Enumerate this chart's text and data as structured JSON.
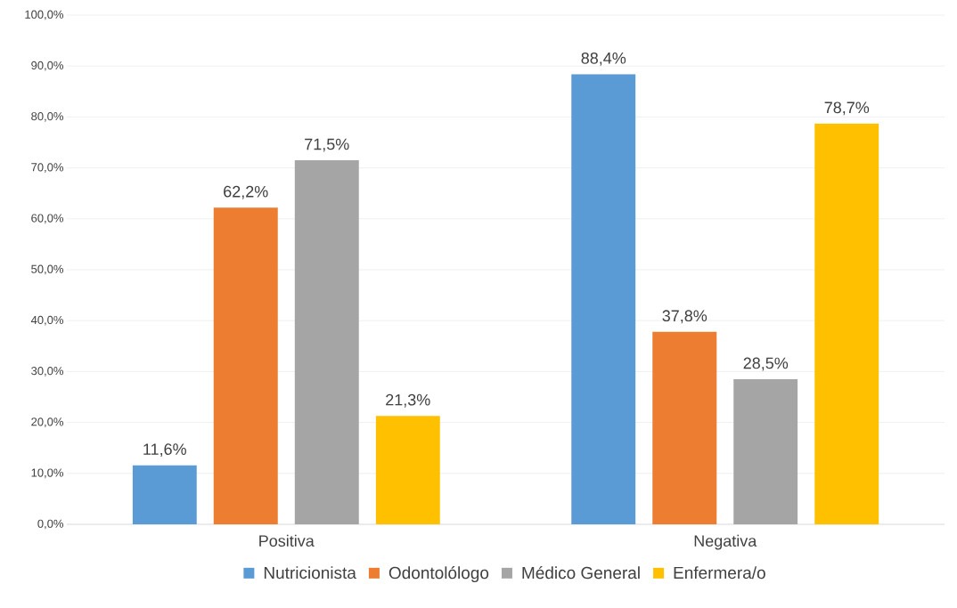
{
  "chart_data": {
    "type": "bar",
    "categories": [
      "Positiva",
      "Negativa"
    ],
    "series": [
      {
        "name": "Nutricionista",
        "color": "#5b9bd5",
        "values": [
          11.6,
          88.4
        ],
        "value_labels": [
          "11,6%",
          "88,4%"
        ]
      },
      {
        "name": "Odontolólogo",
        "color": "#ed7d31",
        "values": [
          62.2,
          37.8
        ],
        "value_labels": [
          "62,2%",
          "37,8%"
        ]
      },
      {
        "name": "Médico General",
        "color": "#a5a5a5",
        "values": [
          71.5,
          28.5
        ],
        "value_labels": [
          "71,5%",
          "28,5%"
        ]
      },
      {
        "name": "Enfermera/o",
        "color": "#ffc000",
        "values": [
          21.3,
          78.7
        ],
        "value_labels": [
          "21,3%",
          "78,7%"
        ]
      }
    ],
    "ylim": [
      0,
      100
    ],
    "yticks": [
      {
        "value": 0,
        "label": "0,0%"
      },
      {
        "value": 10,
        "label": "10,0%"
      },
      {
        "value": 20,
        "label": "20,0%"
      },
      {
        "value": 30,
        "label": "30,0%"
      },
      {
        "value": 40,
        "label": "40,0%"
      },
      {
        "value": 50,
        "label": "50,0%"
      },
      {
        "value": 60,
        "label": "60,0%"
      },
      {
        "value": 70,
        "label": "70,0%"
      },
      {
        "value": 80,
        "label": "80,0%"
      },
      {
        "value": 90,
        "label": "90,0%"
      },
      {
        "value": 100,
        "label": "100,0%"
      }
    ],
    "grid": "y",
    "legend": "bottom"
  }
}
